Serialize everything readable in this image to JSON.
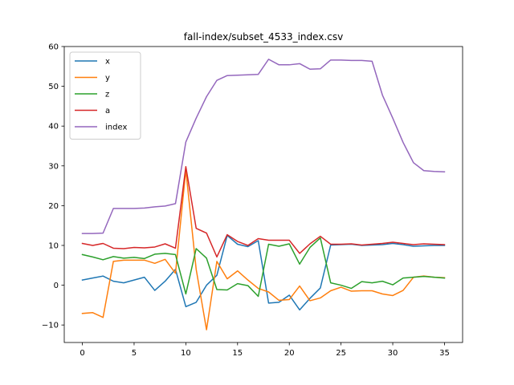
{
  "chart_data": {
    "type": "line",
    "title": "fall-index/subset_4533_index.csv",
    "xlabel": "",
    "ylabel": "",
    "xlim": [
      -1.75,
      36.75
    ],
    "ylim": [
      -14.4,
      60
    ],
    "xticks": [
      0,
      5,
      10,
      15,
      20,
      25,
      30,
      35
    ],
    "yticks": [
      -10,
      0,
      10,
      20,
      30,
      40,
      50,
      60
    ],
    "grid": false,
    "legend": "top-left",
    "x": [
      0,
      1,
      2,
      3,
      4,
      5,
      6,
      7,
      8,
      9,
      10,
      11,
      12,
      13,
      14,
      15,
      16,
      17,
      18,
      19,
      20,
      21,
      22,
      23,
      24,
      25,
      26,
      27,
      28,
      29,
      30,
      31,
      32,
      33,
      34,
      35
    ],
    "series": [
      {
        "name": "x",
        "color": "#1f77b4",
        "values": [
          1.3,
          1.8,
          2.3,
          1.0,
          0.6,
          1.3,
          2.0,
          -1.3,
          1.0,
          4.0,
          -5.4,
          -4.3,
          0.0,
          2.5,
          12.5,
          10.3,
          9.7,
          11.2,
          -4.5,
          -4.3,
          -2.5,
          -6.2,
          -3.3,
          -0.7,
          10.1,
          10.2,
          10.3,
          10.0,
          10.1,
          10.2,
          10.5,
          10.2,
          9.8,
          9.9,
          10.0,
          10.0
        ]
      },
      {
        "name": "y",
        "color": "#ff7f0e",
        "values": [
          -7.1,
          -6.9,
          -8.1,
          6.0,
          6.3,
          6.3,
          6.3,
          5.5,
          6.5,
          3.0,
          29.0,
          4.0,
          -11.2,
          6.0,
          1.6,
          3.6,
          1.3,
          -0.8,
          -1.7,
          -3.8,
          -3.6,
          -0.2,
          -3.9,
          -3.2,
          -1.4,
          -0.5,
          -1.5,
          -1.4,
          -1.4,
          -2.2,
          -2.6,
          -1.3,
          2.0,
          2.3,
          2.0,
          1.9
        ]
      },
      {
        "name": "z",
        "color": "#2ca02c",
        "values": [
          7.7,
          7.1,
          6.4,
          7.2,
          6.8,
          7.0,
          6.7,
          7.8,
          8.0,
          7.7,
          -2.2,
          9.2,
          6.8,
          -1.1,
          -1.2,
          0.4,
          -0.1,
          -2.8,
          10.3,
          9.8,
          10.4,
          5.3,
          9.5,
          11.9,
          0.6,
          0.0,
          -0.8,
          0.9,
          0.6,
          1.0,
          0.1,
          1.8,
          2.0,
          2.2,
          2.0,
          1.8
        ]
      },
      {
        "name": "a",
        "color": "#d62728",
        "values": [
          10.5,
          10.0,
          10.5,
          9.3,
          9.2,
          9.5,
          9.4,
          9.6,
          10.4,
          9.3,
          29.8,
          14.3,
          13.1,
          7.1,
          12.7,
          11.0,
          10.0,
          11.7,
          11.3,
          11.3,
          11.3,
          8.0,
          10.4,
          12.3,
          10.3,
          10.3,
          10.4,
          10.1,
          10.3,
          10.5,
          10.8,
          10.5,
          10.2,
          10.4,
          10.3,
          10.2
        ]
      },
      {
        "name": "index",
        "color": "#9467bd",
        "values": [
          13.0,
          13.0,
          13.1,
          19.3,
          19.3,
          19.3,
          19.4,
          19.7,
          19.9,
          20.5,
          36.0,
          42.0,
          47.4,
          51.5,
          52.7,
          52.8,
          52.9,
          53.0,
          56.8,
          55.4,
          55.4,
          55.7,
          54.3,
          54.4,
          56.6,
          56.6,
          56.5,
          56.5,
          56.3,
          47.8,
          42.0,
          35.9,
          30.8,
          28.8,
          28.6,
          28.5
        ]
      }
    ]
  }
}
